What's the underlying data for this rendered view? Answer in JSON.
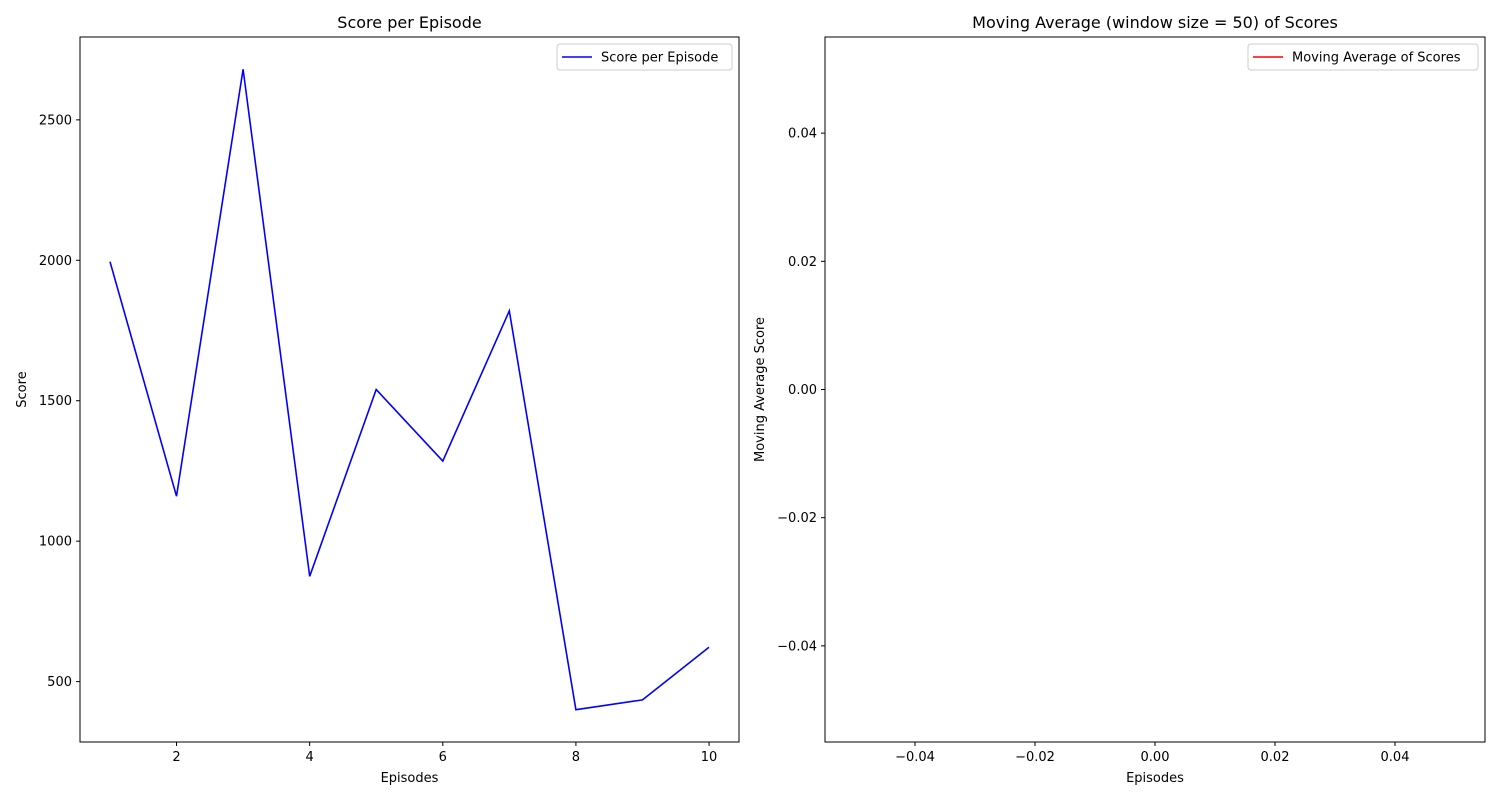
{
  "chart_data": [
    {
      "type": "line",
      "title": "Score per Episode",
      "xlabel": "Episodes",
      "ylabel": "Score",
      "xlim": [
        0.55,
        10.45
      ],
      "ylim": [
        285,
        2795
      ],
      "xticks": [
        2,
        4,
        6,
        8,
        10
      ],
      "yticks": [
        500,
        1000,
        1500,
        2000,
        2500
      ],
      "legend_position": "upper-right",
      "series": [
        {
          "name": "Score per Episode",
          "color": "#0000ff",
          "x": [
            1,
            2,
            3,
            4,
            5,
            6,
            7,
            8,
            9,
            10
          ],
          "y": [
            1995,
            1160,
            2680,
            875,
            1540,
            1285,
            1820,
            400,
            435,
            622
          ]
        }
      ]
    },
    {
      "type": "line",
      "title": "Moving Average (window size = 50) of Scores",
      "xlabel": "Episodes",
      "ylabel": "Moving Average Score",
      "xlim": [
        -0.055,
        0.055
      ],
      "ylim": [
        -0.055,
        0.055
      ],
      "xticks": [
        -0.04,
        -0.02,
        0.0,
        0.02,
        0.04
      ],
      "xtick_labels": [
        "−0.04",
        "−0.02",
        "0.00",
        "0.02",
        "0.04"
      ],
      "yticks": [
        0.04,
        0.02,
        0.0,
        -0.02,
        -0.04
      ],
      "ytick_labels": [
        "0.04",
        "0.02",
        "0.00",
        "−0.02",
        "−0.04"
      ],
      "legend_position": "upper-right",
      "series": [
        {
          "name": "Moving Average of Scores",
          "color": "#ff0000",
          "x": [],
          "y": []
        }
      ]
    }
  ]
}
